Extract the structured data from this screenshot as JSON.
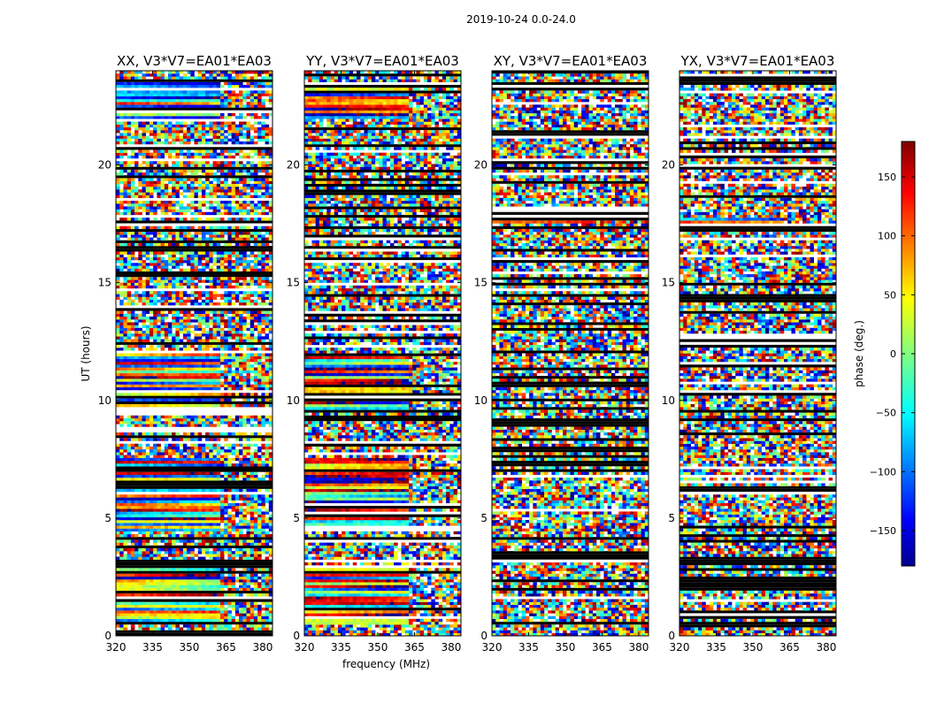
{
  "figure": {
    "suptitle": "2019-10-24 0.0-24.0",
    "colorbar_label": "phase (deg.)",
    "colorbar_ticks": [
      -150,
      -100,
      -50,
      0,
      50,
      100,
      150
    ],
    "colorbar_range": [
      -180,
      180
    ],
    "colormap": "jet"
  },
  "chart_data": [
    {
      "type": "heatmap",
      "title": "XX, V3*V7=EA01*EA03",
      "xlabel": "",
      "ylabel": "UT (hours)",
      "xlim": [
        320,
        384
      ],
      "ylim": [
        0,
        24
      ],
      "xticks": [
        320,
        335,
        350,
        365,
        380
      ],
      "yticks": [
        0,
        5,
        10,
        15,
        20
      ],
      "z_quantity": "phase (deg.)",
      "z_range": [
        -180,
        180
      ],
      "coherent_bands_hours": [
        [
          0.5,
          3
        ],
        [
          4.5,
          7.5
        ],
        [
          9.5,
          12
        ],
        [
          22,
          23.5
        ]
      ]
    },
    {
      "type": "heatmap",
      "title": "YY, V3*V7=EA01*EA03",
      "xlabel": "frequency (MHz)",
      "ylabel": "",
      "xlim": [
        320,
        384
      ],
      "ylim": [
        0,
        24
      ],
      "xticks": [
        320,
        335,
        350,
        365,
        380
      ],
      "yticks": [
        0,
        5,
        10,
        15,
        20
      ],
      "z_quantity": "phase (deg.)",
      "z_range": [
        -180,
        180
      ],
      "coherent_bands_hours": [
        [
          0.5,
          3
        ],
        [
          4.5,
          7.5
        ],
        [
          9.5,
          12
        ],
        [
          22,
          23.5
        ]
      ]
    },
    {
      "type": "heatmap",
      "title": "XY, V3*V7=EA01*EA03",
      "xlabel": "",
      "ylabel": "",
      "xlim": [
        320,
        384
      ],
      "ylim": [
        0,
        24
      ],
      "xticks": [
        320,
        335,
        350,
        365,
        380
      ],
      "yticks": [
        0,
        5,
        10,
        15,
        20
      ],
      "z_quantity": "phase (deg.)",
      "z_range": [
        -180,
        180
      ],
      "coherent_bands_hours": [
        [
          17.5,
          17.8
        ]
      ]
    },
    {
      "type": "heatmap",
      "title": "YX, V3*V7=EA01*EA03",
      "xlabel": "",
      "ylabel": "",
      "xlim": [
        320,
        384
      ],
      "ylim": [
        0,
        24
      ],
      "xticks": [
        320,
        335,
        350,
        365,
        380
      ],
      "yticks": [
        0,
        5,
        10,
        15,
        20
      ],
      "z_quantity": "phase (deg.)",
      "z_range": [
        -180,
        180
      ],
      "coherent_bands_hours": [
        [
          17.5,
          17.8
        ]
      ]
    }
  ]
}
